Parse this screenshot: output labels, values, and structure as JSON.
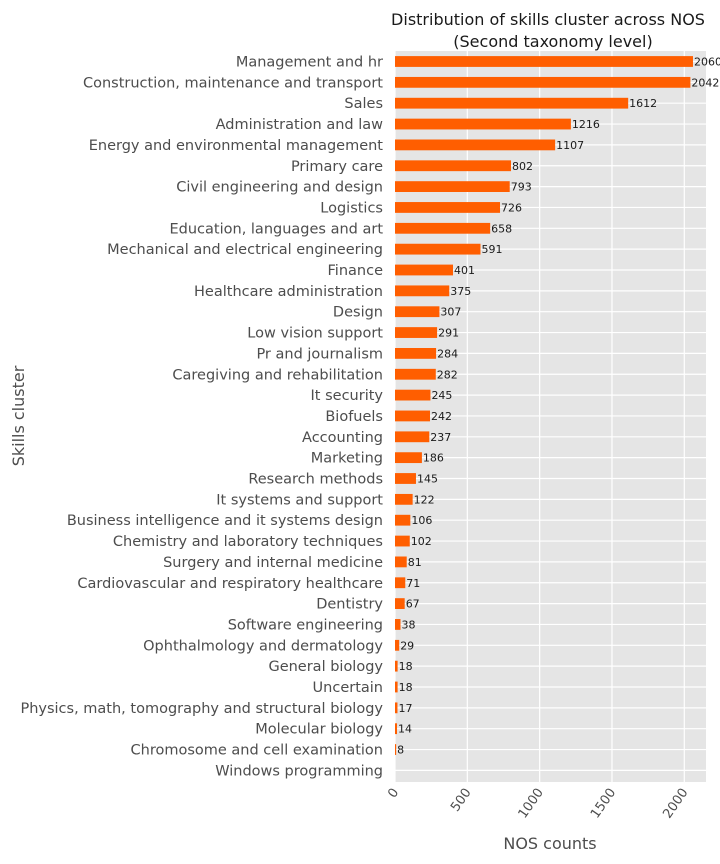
{
  "chart_data": {
    "type": "bar",
    "orientation": "horizontal",
    "title": "Distribution of skills cluster across NOS",
    "subtitle": "(Second taxonomy level)",
    "xlabel": "NOS counts",
    "ylabel": "Skills cluster",
    "xlim": [
      0,
      2150
    ],
    "xticks": [
      "0",
      "500",
      "1000",
      "1500",
      "2000"
    ],
    "xtick_values": [
      0,
      500,
      1000,
      1500,
      2000
    ],
    "grid": true,
    "bar_color": "#ff5e00",
    "plot_background": "#e5e5e5",
    "categories": [
      "Management and hr",
      "Construction, maintenance and transport",
      "Sales",
      "Administration and law",
      "Energy and environmental management",
      "Primary care",
      "Civil engineering and design",
      "Logistics",
      "Education, languages and art",
      "Mechanical and electrical engineering",
      "Finance",
      "Healthcare administration",
      "Design",
      "Low vision support",
      "Pr and journalism",
      "Caregiving and rehabilitation",
      "It security",
      "Biofuels",
      "Accounting",
      "Marketing",
      "Research methods",
      "It systems and support",
      "Business intelligence and it systems design",
      "Chemistry and laboratory techniques",
      "Surgery and internal medicine",
      "Cardiovascular and respiratory healthcare",
      "Dentistry",
      "Software engineering",
      "Ophthalmology and dermatology",
      "General biology",
      "Uncertain",
      "Physics, math, tomography and structural biology",
      "Molecular biology",
      "Chromosome and cell examination",
      "Windows programming"
    ],
    "values": [
      2060,
      2042,
      1612,
      1216,
      1107,
      802,
      793,
      726,
      658,
      591,
      401,
      375,
      307,
      291,
      284,
      282,
      245,
      242,
      237,
      186,
      145,
      122,
      106,
      102,
      81,
      71,
      67,
      38,
      29,
      18,
      18,
      17,
      14,
      8,
      null
    ],
    "value_labels": [
      "2060",
      "2042",
      "1612",
      "1216",
      "1107",
      "802",
      "793",
      "726",
      "658",
      "591",
      "401",
      "375",
      "307",
      "291",
      "284",
      "282",
      "245",
      "242",
      "237",
      "186",
      "145",
      "122",
      "106",
      "102",
      "81",
      "71",
      "67",
      "38",
      "29",
      "18",
      "18",
      "17",
      "14",
      "8",
      ""
    ]
  }
}
